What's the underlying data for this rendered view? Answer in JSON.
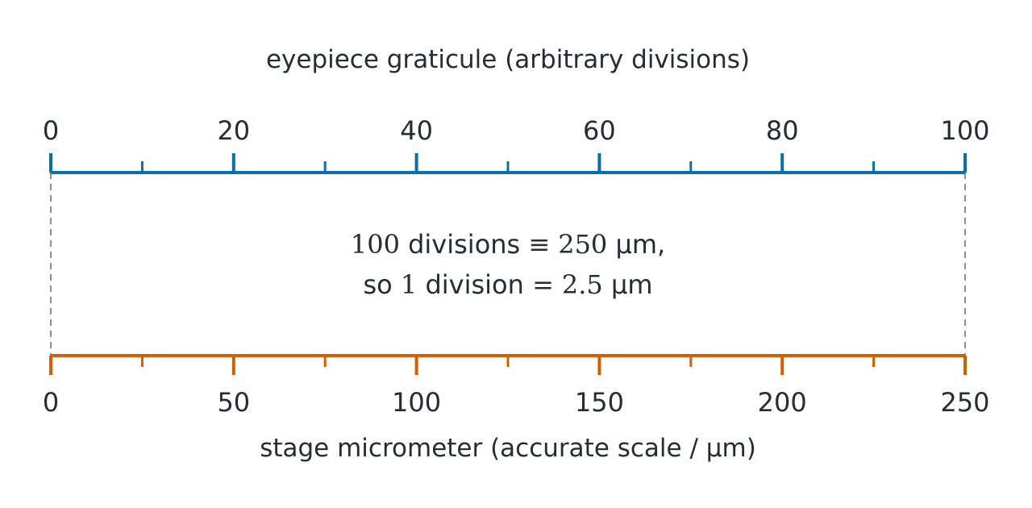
{
  "colors": {
    "eyepiece": "#0b6fa8",
    "stage": "#d45f00",
    "guide": "#888c94",
    "text": "#262b36"
  },
  "eyepiece": {
    "title": "eyepiece graticule (arbitrary divisions)",
    "range": [
      0,
      100
    ],
    "major_ticks": [
      0,
      20,
      40,
      60,
      80,
      100
    ],
    "minor_ticks": [
      10,
      30,
      50,
      70,
      90
    ],
    "labels": [
      "0",
      "20",
      "40",
      "60",
      "80",
      "100"
    ]
  },
  "stage": {
    "title": "stage micrometer (accurate scale / μm)",
    "range": [
      0,
      250
    ],
    "major_ticks": [
      0,
      50,
      100,
      150,
      200,
      250
    ],
    "minor_ticks": [
      25,
      75,
      125,
      175,
      225
    ],
    "labels": [
      "0",
      "50",
      "100",
      "150",
      "200",
      "250"
    ]
  },
  "calibration": {
    "line1": {
      "num": "100",
      "text": " divisions ",
      "op": "≡",
      "value": "250",
      "unit": " μm,"
    },
    "line2": {
      "prefix": "so ",
      "num": "1",
      "text": " division ",
      "op": "=",
      "value": "2.5",
      "unit": " μm"
    }
  }
}
